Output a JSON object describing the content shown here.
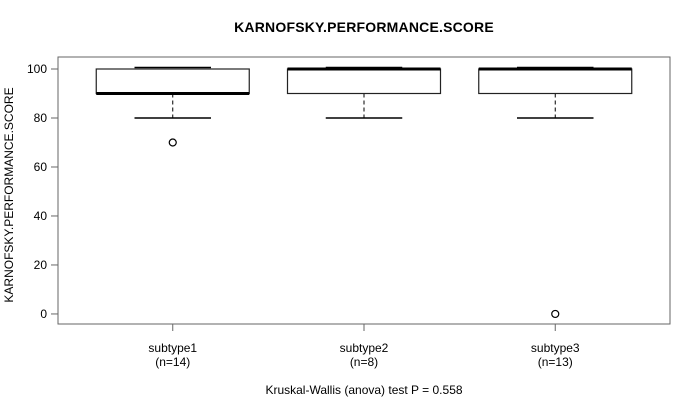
{
  "chart_data": {
    "type": "boxplot",
    "title": "KARNOFSKY.PERFORMANCE.SCORE",
    "ylabel": "KARNOFSKY.PERFORMANCE.SCORE",
    "xlabel": "",
    "caption": "Kruskal-Wallis (anova) test P = 0.558",
    "p_value": 0.558,
    "y_ticks": [
      0,
      20,
      40,
      60,
      80,
      100
    ],
    "ylim": [
      -4.1,
      104.9
    ],
    "xlim": [
      0.4,
      3.6
    ],
    "box_width": 0.8,
    "staple_width": 0.4,
    "grid": false,
    "colors": {
      "box_fill": "#ffffff",
      "box_stroke": "#222222",
      "line": "#000000",
      "frame": "#666666",
      "text": "#000000"
    },
    "groups": [
      {
        "label": "subtype1",
        "count_label": "(n=14)",
        "n": 14,
        "position": 1,
        "stats": {
          "whisker_low": 80,
          "q1": 90,
          "median": 90,
          "q3": 100,
          "whisker_high": 100
        },
        "outliers": [
          70
        ]
      },
      {
        "label": "subtype2",
        "count_label": "(n=8)",
        "n": 8,
        "position": 2,
        "stats": {
          "whisker_low": 80,
          "q1": 90,
          "median": 100,
          "q3": 100,
          "whisker_high": 100
        },
        "outliers": []
      },
      {
        "label": "subtype3",
        "count_label": "(n=13)",
        "n": 13,
        "position": 3,
        "stats": {
          "whisker_low": 80,
          "q1": 90,
          "median": 100,
          "q3": 100,
          "whisker_high": 100
        },
        "outliers": [
          0
        ]
      }
    ]
  }
}
